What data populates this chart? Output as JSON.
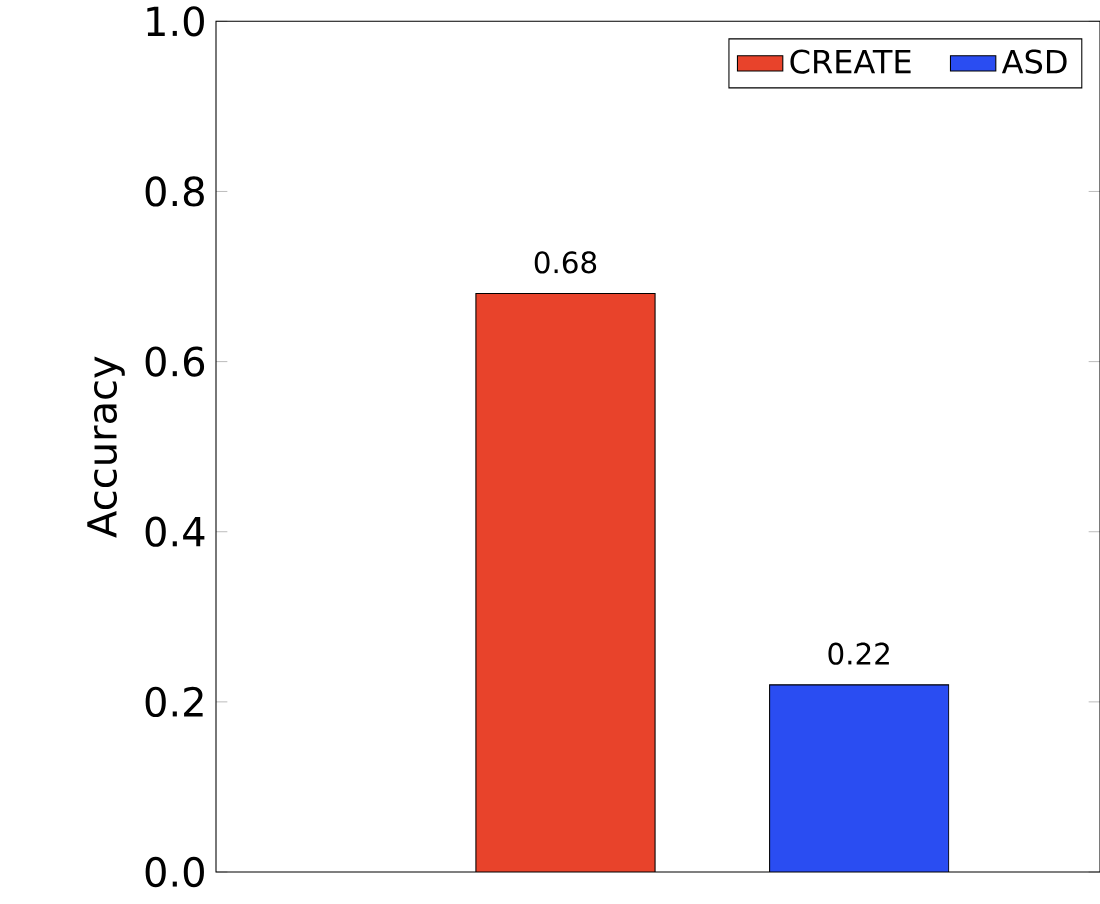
{
  "chart_data": {
    "type": "bar",
    "ylabel": "Accuracy",
    "categories": [
      null
    ],
    "series": [
      {
        "name": "CREATE",
        "color": "#e8432b",
        "values": [
          0.68
        ]
      },
      {
        "name": "ASD",
        "color": "#2a4df2",
        "values": [
          0.22
        ]
      }
    ],
    "ylim": [
      0,
      1
    ],
    "yticks": [
      {
        "value": 0,
        "label": "0.0"
      },
      {
        "value": 0.2,
        "label": "0.2"
      },
      {
        "value": 0.4,
        "label": "0.4"
      },
      {
        "value": 0.6,
        "label": "0.6"
      },
      {
        "value": 0.8,
        "label": "0.8"
      },
      {
        "value": 1.0,
        "label": "1.0"
      }
    ],
    "data_labels": true,
    "legend": "top right",
    "grid": false
  }
}
